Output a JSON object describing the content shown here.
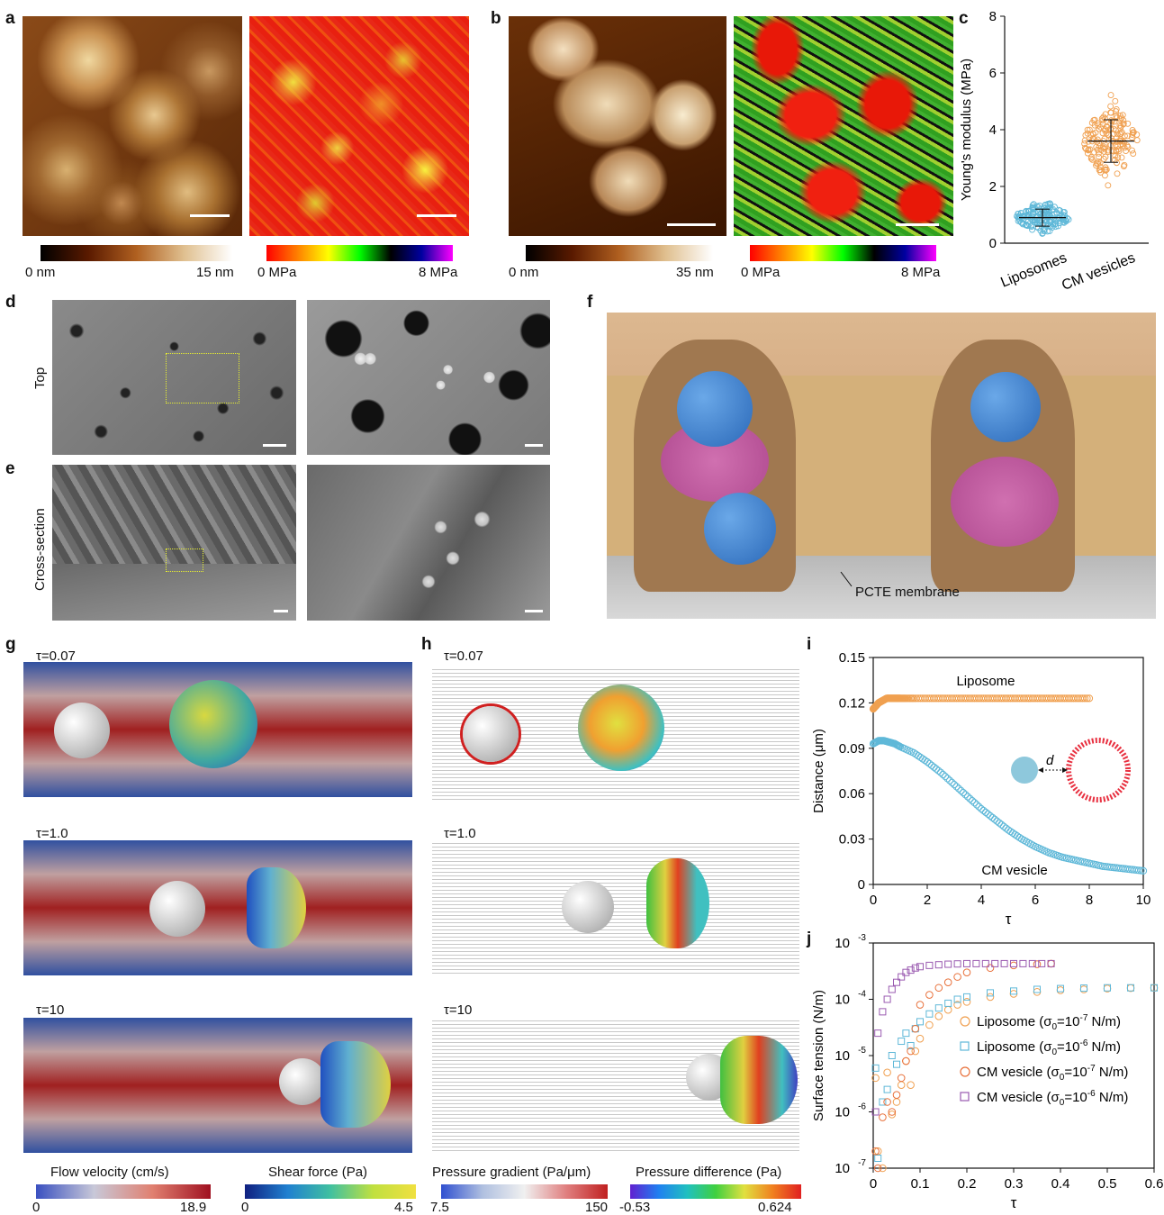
{
  "panels": {
    "a": {
      "label": "a",
      "height_scale": {
        "min": "0 nm",
        "max": "15 nm"
      },
      "modulus_scale": {
        "min": "0 MPa",
        "max": "8 MPa"
      }
    },
    "b": {
      "label": "b",
      "height_scale": {
        "min": "0 nm",
        "max": "35 nm"
      },
      "modulus_scale": {
        "min": "0 MPa",
        "max": "8 MPa"
      }
    },
    "c": {
      "label": "c"
    },
    "d": {
      "label": "d",
      "side_label": "Top"
    },
    "e": {
      "label": "e",
      "side_label": "Cross-section"
    },
    "f": {
      "label": "f",
      "annotation": "PCTE membrane"
    },
    "g": {
      "label": "g",
      "times": [
        "τ=0.07",
        "τ=1.0",
        "τ=10"
      ]
    },
    "h": {
      "label": "h",
      "times": [
        "τ=0.07",
        "τ=1.0",
        "τ=10"
      ]
    },
    "i": {
      "label": "i",
      "inset_label": "d"
    },
    "j": {
      "label": "j"
    }
  },
  "colorbars": [
    {
      "title": "Flow velocity (cm/s)",
      "min": "0",
      "max": "18.9"
    },
    {
      "title": "Shear force (Pa)",
      "min": "0",
      "max": "4.5"
    },
    {
      "title": "Pressure gradient (Pa/μm)",
      "min": "7.5",
      "max": "150"
    },
    {
      "title": "Pressure difference (Pa)",
      "min": "-0.53",
      "max": "0.624"
    }
  ],
  "chart_data": [
    {
      "panel": "c",
      "type": "scatter",
      "ylabel": "Young's modulus (MPa)",
      "ylim": [
        0,
        8
      ],
      "yticks": [
        "0",
        "2",
        "4",
        "6",
        "8"
      ],
      "categories": [
        "Liposomes",
        "CM vesicles"
      ],
      "series": [
        {
          "name": "Liposomes",
          "mean": 0.9,
          "sd": 0.3,
          "color": "#5fb8d8"
        },
        {
          "name": "CM vesicles",
          "mean": 3.6,
          "sd": 0.75,
          "color": "#f0a050"
        }
      ]
    },
    {
      "panel": "i",
      "type": "scatter",
      "xlabel": "τ",
      "ylabel": "Distance  (μm)",
      "xlim": [
        0,
        10
      ],
      "ylim": [
        0,
        0.15
      ],
      "xticks": [
        "0",
        "2",
        "4",
        "6",
        "8",
        "10"
      ],
      "yticks": [
        "0",
        "0.03",
        "0.06",
        "0.09",
        "0.12",
        "0.15"
      ],
      "series": [
        {
          "name": "Liposome",
          "color": "#f0a050",
          "x": [
            0.0,
            0.1,
            0.2,
            0.3,
            0.4,
            0.5,
            0.6,
            0.7,
            0.8,
            0.9,
            1.0,
            1.2,
            1.5,
            2.0,
            2.5,
            3.0,
            3.5,
            4.0,
            4.5,
            5.0,
            5.5,
            6.0,
            6.5,
            7.0,
            7.5,
            8.0
          ],
          "y": [
            0.116,
            0.118,
            0.12,
            0.121,
            0.122,
            0.123,
            0.123,
            0.123,
            0.123,
            0.123,
            0.123,
            0.123,
            0.123,
            0.123,
            0.123,
            0.123,
            0.123,
            0.123,
            0.123,
            0.123,
            0.123,
            0.123,
            0.123,
            0.123,
            0.123,
            0.123
          ]
        },
        {
          "name": "CM vesicle",
          "color": "#5fb8d8",
          "x": [
            0.0,
            0.2,
            0.4,
            0.6,
            0.8,
            1.0,
            1.5,
            2.0,
            2.5,
            3.0,
            3.5,
            4.0,
            4.5,
            5.0,
            5.5,
            6.0,
            6.5,
            7.0,
            7.5,
            8.0,
            8.5,
            9.0,
            9.5,
            10.0
          ],
          "y": [
            0.093,
            0.095,
            0.095,
            0.094,
            0.093,
            0.091,
            0.087,
            0.081,
            0.074,
            0.066,
            0.058,
            0.05,
            0.043,
            0.036,
            0.03,
            0.025,
            0.021,
            0.018,
            0.016,
            0.014,
            0.012,
            0.011,
            0.01,
            0.009
          ]
        }
      ]
    },
    {
      "panel": "j",
      "type": "scatter",
      "xlabel": "τ",
      "ylabel": "Surface tension  (N/m)",
      "xlim": [
        0,
        0.6
      ],
      "ylim_log10": [
        -7,
        -3
      ],
      "xticks": [
        "0",
        "0.1",
        "0.2",
        "0.3",
        "0.4",
        "0.5",
        "0.6"
      ],
      "series": [
        {
          "name": "Liposome (σ0=10-7 N/m)",
          "legend_main": "Liposome (σ",
          "legend_sub": "0",
          "legend_mid": "=10",
          "legend_sup": "-7",
          "legend_end": " N/m)",
          "color": "#f0a050",
          "marker": "circle",
          "x": [
            0.005,
            0.01,
            0.02,
            0.03,
            0.04,
            0.05,
            0.06,
            0.07,
            0.08,
            0.09,
            0.1,
            0.12,
            0.14,
            0.16,
            0.18,
            0.2,
            0.25,
            0.3,
            0.35,
            0.4,
            0.45,
            0.5,
            0.55,
            0.6
          ],
          "y": [
            4e-06,
            2e-07,
            1e-07,
            5e-06,
            9e-07,
            1.5e-06,
            3e-06,
            8e-06,
            3e-06,
            1.2e-05,
            2e-05,
            3.5e-05,
            5e-05,
            6.5e-05,
            8e-05,
            9e-05,
            0.00011,
            0.000125,
            0.000135,
            0.000145,
            0.00015,
            0.000155,
            0.000158,
            0.00016
          ]
        },
        {
          "name": "Liposome (σ0=10-6 N/m)",
          "legend_main": "Liposome (σ",
          "legend_sub": "0",
          "legend_mid": "=10",
          "legend_sup": "-6",
          "legend_end": " N/m)",
          "color": "#5fb8d8",
          "marker": "square",
          "x": [
            0.005,
            0.01,
            0.02,
            0.03,
            0.04,
            0.05,
            0.06,
            0.07,
            0.08,
            0.09,
            0.1,
            0.12,
            0.14,
            0.16,
            0.18,
            0.2,
            0.25,
            0.3,
            0.35,
            0.4,
            0.45,
            0.5,
            0.55,
            0.6
          ],
          "y": [
            6e-06,
            1.5e-07,
            1.5e-06,
            2.5e-06,
            1e-05,
            7e-06,
            1.8e-05,
            2.5e-05,
            1.5e-05,
            3e-05,
            4e-05,
            5.5e-05,
            7e-05,
            8.5e-05,
            0.0001,
            0.00011,
            0.00013,
            0.00014,
            0.00015,
            0.000155,
            0.000158,
            0.00016,
            0.00016,
            0.00016
          ]
        },
        {
          "name": "CM vesicle (σ0=10-7 N/m)",
          "legend_main": "CM vesicle (σ",
          "legend_sub": "0",
          "legend_mid": "=10",
          "legend_sup": "-7",
          "legend_end": " N/m)",
          "color": "#e8703a",
          "marker": "circle",
          "x": [
            0.005,
            0.01,
            0.02,
            0.03,
            0.04,
            0.05,
            0.06,
            0.07,
            0.08,
            0.09,
            0.1,
            0.12,
            0.14,
            0.16,
            0.18,
            0.2,
            0.25,
            0.3,
            0.35,
            0.38
          ],
          "y": [
            2e-07,
            1e-07,
            8e-07,
            1.5e-06,
            1e-06,
            2e-06,
            4e-06,
            8e-06,
            1.2e-05,
            3e-05,
            8e-05,
            0.00012,
            0.00016,
            0.0002,
            0.00025,
            0.0003,
            0.00036,
            0.0004,
            0.00042,
            0.00043
          ]
        },
        {
          "name": "CM vesicle (σ0=10-6 N/m)",
          "legend_main": "CM vesicle (σ",
          "legend_sub": "0",
          "legend_mid": "=10",
          "legend_sup": "-6",
          "legend_end": " N/m)",
          "color": "#9a5ab0",
          "marker": "square",
          "x": [
            0.005,
            0.01,
            0.02,
            0.03,
            0.04,
            0.05,
            0.06,
            0.07,
            0.08,
            0.09,
            0.1,
            0.12,
            0.14,
            0.16,
            0.18,
            0.2,
            0.22,
            0.24,
            0.26,
            0.28,
            0.3,
            0.32,
            0.34,
            0.36,
            0.38
          ],
          "y": [
            1e-06,
            2.5e-05,
            6e-05,
            0.0001,
            0.00015,
            0.0002,
            0.00025,
            0.0003,
            0.00033,
            0.00036,
            0.00038,
            0.0004,
            0.00041,
            0.00042,
            0.000425,
            0.00043,
            0.00043,
            0.00043,
            0.00043,
            0.00043,
            0.00043,
            0.00043,
            0.00043,
            0.00043,
            0.00043
          ]
        }
      ]
    }
  ]
}
